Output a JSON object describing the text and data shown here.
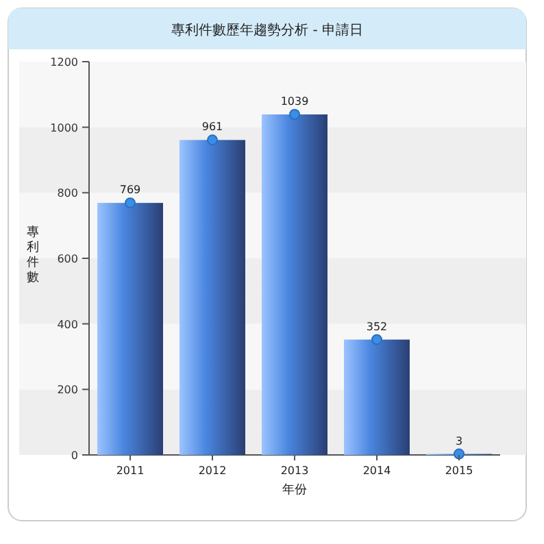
{
  "chart_data": {
    "type": "bar",
    "title": "專利件數歷年趨勢分析 - 申請日",
    "xlabel": "年份",
    "ylabel": "專利件數",
    "categories": [
      "2011",
      "2012",
      "2013",
      "2014",
      "2015"
    ],
    "series": [
      {
        "color": "#4a86e0",
        "values": [
          769,
          961,
          1039,
          352,
          3
        ]
      },
      {
        "type": "scatter",
        "color": "#3a8ee6",
        "values": [
          769,
          961,
          1039,
          352,
          3
        ],
        "value_labels": [
          "769",
          "961",
          "1039",
          "352",
          "3"
        ]
      }
    ],
    "ylim": [
      0,
      1200
    ],
    "yticks": [
      0,
      200,
      400,
      600,
      800,
      1000,
      1200
    ],
    "marker": "circle"
  }
}
